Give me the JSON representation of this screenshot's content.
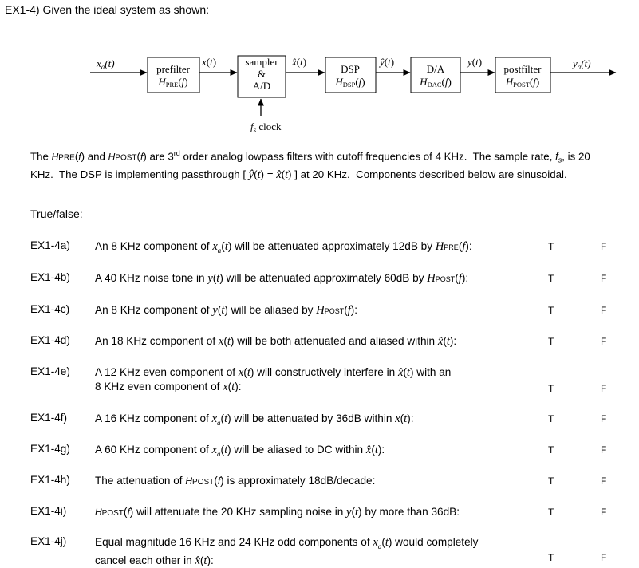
{
  "title": "EX1-4)  Given the ideal system as shown:",
  "diagram": {
    "xa_in": "x_a(t)",
    "prefilter": "prefilter",
    "prefilter_h": "H_PRE(f)",
    "x_sig": "x(t)",
    "sampler": "sampler",
    "amp": "&",
    "ad": "A/D",
    "xhat": "x̂(t)",
    "dsp": "DSP",
    "dsp_h": "H_DSP(f)",
    "yhat": "ŷ(t)",
    "da": "D/A",
    "da_h": "H_DAC(f)",
    "y_sig": "y(t)",
    "postfilter": "postfilter",
    "postfilter_h": "H_POST(f)",
    "ya_out": "y_a(t)",
    "clock": "f_s clock"
  },
  "description": [
    "The HPRE(f) and HPOST(f) are 3rd order analog lowpass filters with cutoff frequencies of 4 KHz. The sample rate, fs, is 20",
    "KHz. The DSP is implementing passthrough [ ŷ(t) = x̂(t) ] at 20 KHz. Components described below are sinusoidal."
  ],
  "tf_heading": "True/false:",
  "questions": [
    {
      "id": "EX1-4a)",
      "text": "An 8 KHz component of xa(t) will be attenuated approximately 12dB by HPRE(f):",
      "t": "T",
      "f": "F"
    },
    {
      "id": "EX1-4b)",
      "text": "A 40 KHz noise tone in y(t) will be attenuated approximately 60dB by HPOST(f):",
      "t": "T",
      "f": "F"
    },
    {
      "id": "EX1-4c)",
      "text": "An 8 KHz component of y(t) will be aliased by HPOST(f):",
      "t": "T",
      "f": "F"
    },
    {
      "id": "EX1-4d)",
      "text": "An 18 KHz component of x(t) will be both attenuated and aliased within x̂(t):",
      "t": "T",
      "f": "F"
    },
    {
      "id": "EX1-4e)",
      "text": "A 12 KHz even component of x(t) will constructively interfere in x̂(t) with an 8 KHz even component of x(t):",
      "t": "T",
      "f": "F"
    },
    {
      "id": "EX1-4f)",
      "text": "A 16 KHz component of xa(t) will be attenuated by 36dB within x(t):",
      "t": "T",
      "f": "F"
    },
    {
      "id": "EX1-4g)",
      "text": "A 60 KHz component of xa(t) will be aliased to DC within x̂(t):",
      "t": "T",
      "f": "F"
    },
    {
      "id": "EX1-4h)",
      "text": "The attenuation of HPOST(f) is approximately 18dB/decade:",
      "t": "T",
      "f": "F"
    },
    {
      "id": "EX1-4i)",
      "text": "HPOST(f) will attenuate the 20 KHz sampling noise in y(t) by more than 36dB:",
      "t": "T",
      "f": "F"
    },
    {
      "id": "EX1-4j)",
      "text": "Equal magnitude 16 KHz and 24 KHz odd components of xa(t) would completely cancel each other in x̂(t):",
      "t": "T",
      "f": "F"
    }
  ]
}
